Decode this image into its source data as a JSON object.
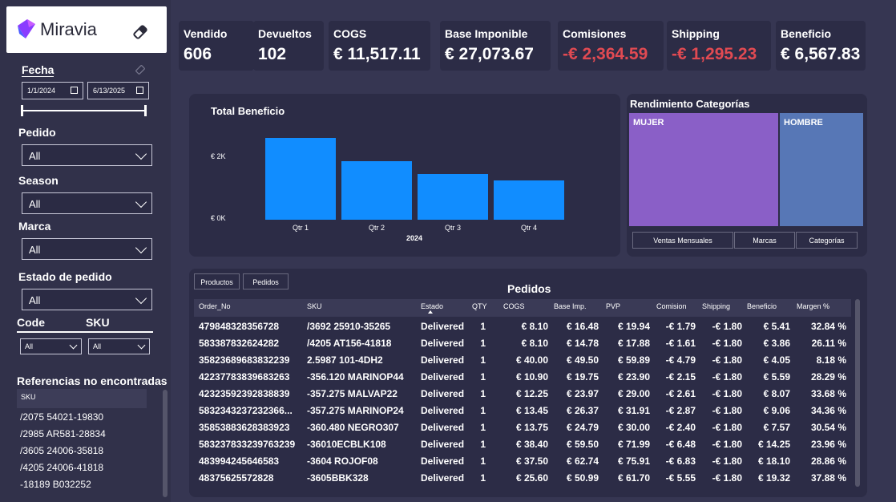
{
  "sidebar": {
    "logo_text": "Miravia",
    "fecha_label": "Fecha",
    "date_from": "1/1/2024",
    "date_to": "6/13/2025",
    "pedido": {
      "label": "Pedido",
      "value": "All"
    },
    "season": {
      "label": "Season",
      "value": "All"
    },
    "marca": {
      "label": "Marca",
      "value": "All"
    },
    "estado": {
      "label": "Estado de pedido",
      "value": "All"
    },
    "code": {
      "label": "Code",
      "value": "All"
    },
    "sku": {
      "label": "SKU",
      "value": "All"
    },
    "refs_title": "Referencias no encontradas",
    "refs_header": "SKU",
    "refs": [
      "/2075 54021-19830",
      "/2985 AR581-28834",
      "/3605 24006-35818",
      "/4205 24006-41818",
      "-18189 B032252"
    ]
  },
  "kpis": [
    {
      "title": "Vendido",
      "value": "606",
      "negative": false
    },
    {
      "title": "Devueltos",
      "value": "102",
      "negative": false
    },
    {
      "title": "COGS",
      "value": "€ 11,517.11",
      "negative": false
    },
    {
      "title": "Base Imponible",
      "value": "€ 27,073.67",
      "negative": false
    },
    {
      "title": "Comisiones",
      "value": "-€ 2,364.59",
      "negative": true
    },
    {
      "title": "Shipping",
      "value": "-€ 1,295.23",
      "negative": true
    },
    {
      "title": "Beneficio",
      "value": "€ 6,567.83",
      "negative": false
    }
  ],
  "chart_data": {
    "type": "bar",
    "title": "Total Beneficio",
    "categories": [
      "Qtr 1",
      "Qtr 2",
      "Qtr 3",
      "Qtr 4"
    ],
    "values": [
      2400,
      1720,
      1350,
      1150
    ],
    "xlabel": "2024",
    "yticks": [
      "€ 2K",
      "€ 0K"
    ],
    "ylim": [
      0,
      3500
    ],
    "color": "#118dff"
  },
  "treemap": {
    "title": "Rendimiento Categorías",
    "items": [
      {
        "label": "MUJER",
        "color": "#8a5fc7"
      },
      {
        "label": "HOMBRE",
        "color": "#5777b6"
      }
    ],
    "buttons": [
      "Ventas Mensuales",
      "Marcas",
      "Categorías"
    ]
  },
  "table": {
    "title": "Pedidos",
    "tabs": [
      "Productos",
      "Pedidos"
    ],
    "columns": [
      "Order_No",
      "SKU",
      "Estado",
      "QTY",
      "COGS",
      "Base Imp.",
      "PVP",
      "Comision",
      "Shipping",
      "Beneficio",
      "Margen %"
    ],
    "rows": [
      [
        "479848328356728",
        "/3692 25910-35265",
        "Delivered",
        "1",
        "€ 8.10",
        "€ 16.48",
        "€ 19.94",
        "-€ 1.79",
        "-€ 1.80",
        "€ 5.41",
        "32.84 %"
      ],
      [
        "583387832624282",
        "/4205 AT156-41818",
        "Delivered",
        "1",
        "€ 8.10",
        "€ 14.78",
        "€ 17.88",
        "-€ 1.61",
        "-€ 1.80",
        "€ 3.86",
        "26.11 %"
      ],
      [
        "35823689683832239",
        "2.5987 101-4DH2",
        "Delivered",
        "1",
        "€ 40.00",
        "€ 49.50",
        "€ 59.89",
        "-€ 4.79",
        "-€ 1.80",
        "€ 4.05",
        "8.18 %"
      ],
      [
        "42237783839683263",
        "-356.120 MARINOP44",
        "Delivered",
        "1",
        "€ 10.90",
        "€ 19.75",
        "€ 23.90",
        "-€ 2.15",
        "-€ 1.80",
        "€ 5.59",
        "28.29 %"
      ],
      [
        "42323592392838839",
        "-357.275 MALVAP22",
        "Delivered",
        "1",
        "€ 12.25",
        "€ 23.97",
        "€ 29.00",
        "-€ 2.61",
        "-€ 1.80",
        "€ 8.07",
        "33.68 %"
      ],
      [
        "5832343237232366...",
        "-357.275 MARINOP24",
        "Delivered",
        "1",
        "€ 13.45",
        "€ 26.37",
        "€ 31.91",
        "-€ 2.87",
        "-€ 1.80",
        "€ 9.06",
        "34.36 %"
      ],
      [
        "35853883628383923",
        "-360.480 NEGRO307",
        "Delivered",
        "1",
        "€ 13.75",
        "€ 24.79",
        "€ 30.00",
        "-€ 2.40",
        "-€ 1.80",
        "€ 7.57",
        "30.54 %"
      ],
      [
        "583237833239763239",
        "-36010ECBLK108",
        "Delivered",
        "1",
        "€ 38.40",
        "€ 59.50",
        "€ 71.99",
        "-€ 6.48",
        "-€ 1.80",
        "€ 14.25",
        "23.96 %"
      ],
      [
        "483994245646583",
        "-3604 ROJOF08",
        "Delivered",
        "1",
        "€ 37.50",
        "€ 62.74",
        "€ 75.91",
        "-€ 6.83",
        "-€ 1.80",
        "€ 18.10",
        "28.86 %"
      ],
      [
        "48375625572828",
        "-3605BBK328",
        "Delivered",
        "1",
        "€ 25.60",
        "€ 50.99",
        "€ 61.70",
        "-€ 5.55",
        "-€ 1.80",
        "€ 19.32",
        "37.88 %"
      ]
    ]
  }
}
